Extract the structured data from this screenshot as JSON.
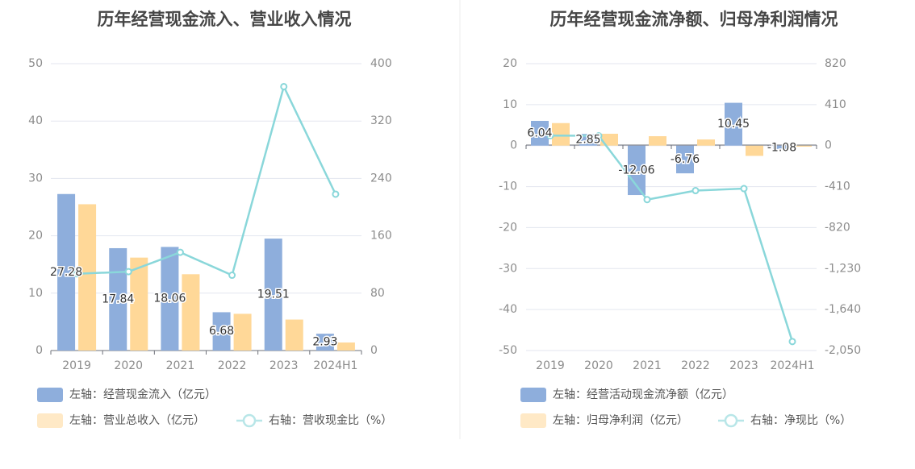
{
  "chart_data": [
    {
      "type": "bar",
      "title": "历年经营现金流入、营业收入情况",
      "categories": [
        "2019",
        "2020",
        "2021",
        "2022",
        "2023",
        "2024H1"
      ],
      "left_axis": {
        "ylim": [
          0,
          50
        ],
        "ticks": [
          "50",
          "40",
          "30",
          "20",
          "10",
          "0"
        ]
      },
      "right_axis": {
        "ylim": [
          0,
          400
        ],
        "ticks": [
          "400",
          "320",
          "240",
          "160",
          "80",
          "0"
        ]
      },
      "grid": true,
      "legend_position": "bottom-left",
      "series": [
        {
          "name": "左轴：经营现金流入（亿元）",
          "kind": "bar",
          "axis": "left",
          "color": "#8eaedc",
          "values": [
            27.28,
            17.84,
            18.06,
            6.68,
            19.51,
            2.93
          ],
          "labels": [
            "27.28",
            "17.84",
            "18.06",
            "6.68",
            "19.51",
            "2.93"
          ]
        },
        {
          "name": "左轴：营业总收入（亿元）",
          "kind": "bar",
          "axis": "left",
          "color": "#ffd898",
          "values": [
            25.5,
            16.2,
            13.3,
            6.4,
            5.4,
            1.4
          ]
        },
        {
          "name": "右轴：营收现金比（%）",
          "kind": "line",
          "axis": "right",
          "color": "#8ad7da",
          "values": [
            107,
            110,
            137,
            105,
            368,
            218
          ]
        }
      ]
    },
    {
      "type": "bar",
      "title": "历年经营现金流净额、归母净利润情况",
      "categories": [
        "2019",
        "2020",
        "2021",
        "2022",
        "2023",
        "2024H1"
      ],
      "left_axis": {
        "ylim": [
          -50,
          20
        ],
        "ticks": [
          "20",
          "10",
          "0",
          "-10",
          "-20",
          "-30",
          "-40",
          "-50"
        ]
      },
      "right_axis": {
        "ylim": [
          -2050,
          820
        ],
        "ticks": [
          "820",
          "410",
          "0",
          "-410",
          "-820",
          "-1,230",
          "-1,640",
          "-2,050"
        ]
      },
      "grid": true,
      "legend_position": "bottom-left",
      "series": [
        {
          "name": "左轴：经营活动现金流净额（亿元）",
          "kind": "bar",
          "axis": "left",
          "color": "#8eaedc",
          "values": [
            6.04,
            2.85,
            -12.06,
            -6.76,
            10.45,
            -1.08
          ],
          "labels": [
            "6.04",
            "2.85",
            "-12.06",
            "-6.76",
            "10.45",
            "-1.08"
          ]
        },
        {
          "name": "左轴：归母净利润（亿元）",
          "kind": "bar",
          "axis": "left",
          "color": "#ffd898",
          "values": [
            5.5,
            2.9,
            2.3,
            1.5,
            -2.5,
            -0.25
          ]
        },
        {
          "name": "右轴：净现比（%）",
          "kind": "line",
          "axis": "right",
          "color": "#8ad7da",
          "values": [
            100,
            98,
            -540,
            -450,
            -430,
            -1960
          ]
        }
      ]
    }
  ]
}
